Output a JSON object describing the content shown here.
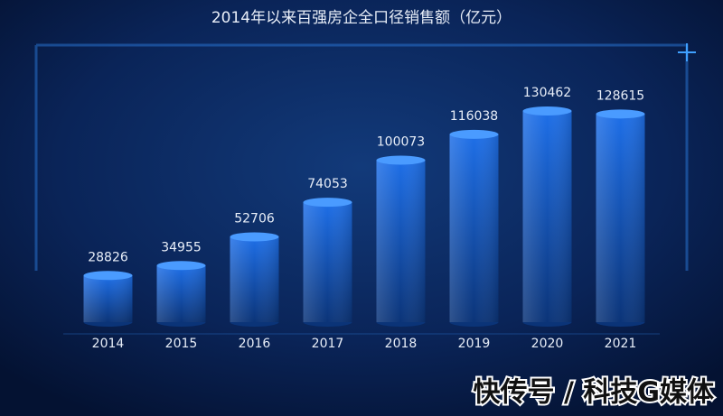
{
  "chart_data": {
    "type": "bar",
    "title": "2014年以来百强房企全口径销售额（亿元）",
    "categories": [
      "2014",
      "2015",
      "2016",
      "2017",
      "2018",
      "2019",
      "2020",
      "2021"
    ],
    "values": [
      28826,
      34955,
      52706,
      74053,
      100073,
      116038,
      130462,
      128615
    ],
    "color": "#1f6fe0"
  },
  "watermark": "快传号 / 科技G媒体"
}
